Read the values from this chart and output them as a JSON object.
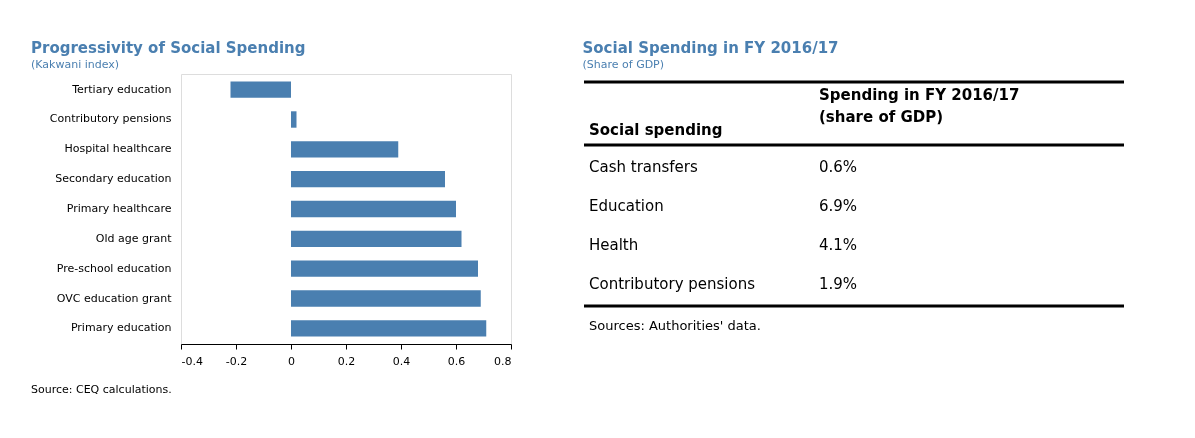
{
  "chart_data": [
    {
      "type": "bar",
      "orientation": "horizontal",
      "title": "Progressivity of Social Spending",
      "subtitle": "(Kakwani index)",
      "categories": [
        "Tertiary education",
        "Contributory pensions",
        "Hospital healthcare",
        "Secondary education",
        "Primary healthcare",
        "Old age grant",
        "Pre-school education",
        "OVC education grant",
        "Primary education"
      ],
      "values": [
        -0.22,
        0.02,
        0.39,
        0.56,
        0.6,
        0.62,
        0.68,
        0.69,
        0.71
      ],
      "color": "#4a7fb0",
      "xlim": [
        -0.4,
        0.8
      ],
      "xticks": [
        -0.4,
        -0.2,
        0,
        0.2,
        0.4,
        0.6,
        0.8
      ],
      "grid": false,
      "annotations": [
        "Source: CEQ calculations."
      ]
    },
    {
      "type": "other",
      "title": "Social Spending in FY 2016/17",
      "subtitle": "(Share of GDP)",
      "xlabel": "Social spending",
      "ylabel": "Spending in FY 2016/17\n(share of GDP)",
      "categories": [
        "Cash transfers",
        "Education",
        "Health",
        "Contributory pensions"
      ],
      "values": [
        0.6,
        6.9,
        4.1,
        1.9
      ],
      "value_labels": [
        "0.6%",
        "6.9%",
        "4.1%",
        "1.9%"
      ],
      "annotations": [
        "Sources: Authorities' data."
      ]
    }
  ]
}
